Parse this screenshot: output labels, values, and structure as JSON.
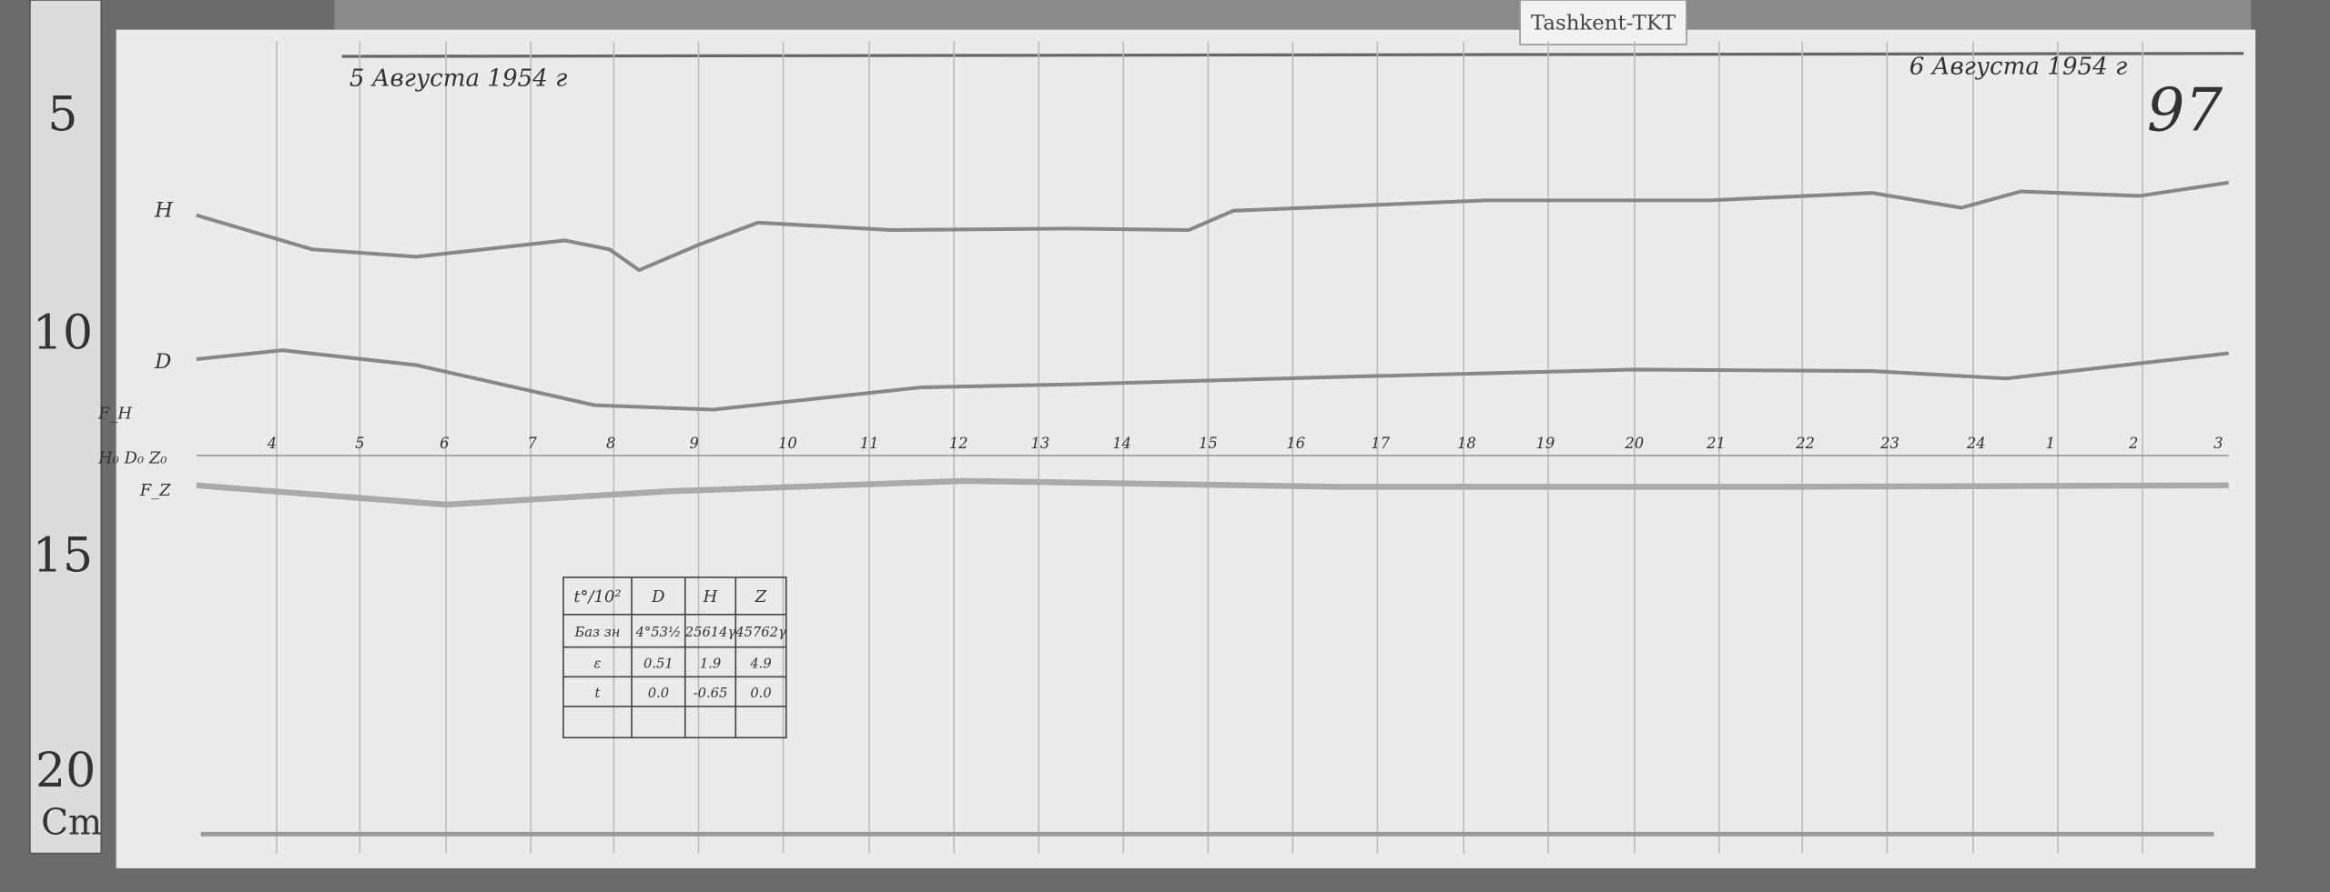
{
  "header": {
    "tag": "Tashkent-TKT"
  },
  "ruler": {
    "labels": [
      "5",
      "10",
      "15",
      "20"
    ],
    "unit": "Cm"
  },
  "record": {
    "date_left": "5 Августа 1954 г",
    "date_right": "6 Августа 1954 г",
    "page_number": "97",
    "trace_labels": {
      "h": "H",
      "d": "D"
    },
    "baseline_labels": [
      "F_H",
      "H₀ D₀ Z₀",
      "F_Z"
    ],
    "hours": [
      "4",
      "5",
      "6",
      "7",
      "8",
      "9",
      "10",
      "11",
      "12",
      "13",
      "14",
      "15",
      "16",
      "17",
      "18",
      "19",
      "20",
      "21",
      "22",
      "23",
      "24",
      "1",
      "2",
      "3"
    ]
  },
  "table": {
    "rows": [
      [
        "t°/10²",
        "D",
        "H",
        "Z"
      ],
      [
        "Баз зн",
        "4°53½",
        "25614γ",
        "45762γ"
      ],
      [
        "ε",
        "0.51",
        "1.9",
        "4.9"
      ],
      [
        "t",
        "0.0",
        "-0.65",
        "0.0"
      ]
    ]
  }
}
